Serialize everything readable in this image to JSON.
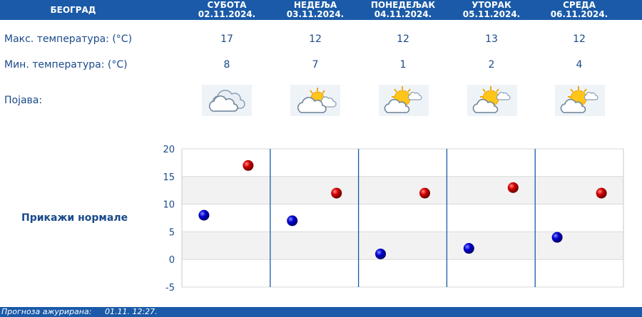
{
  "header": {
    "city": "БЕОГРАД",
    "days": [
      {
        "name": "СУБОТА",
        "date": "02.11.2024."
      },
      {
        "name": "НЕДЕЉА",
        "date": "03.11.2024."
      },
      {
        "name": "ПОНЕДЕЉАК",
        "date": "04.11.2024."
      },
      {
        "name": "УТОРАК",
        "date": "05.11.2024."
      },
      {
        "name": "СРЕДА",
        "date": "06.11.2024."
      }
    ]
  },
  "rows": {
    "max_label": "Макс. температура: (°C)",
    "min_label": "Мин. температура: (°C)",
    "phenomenon_label": "Појава:",
    "max": [
      "17",
      "12",
      "12",
      "13",
      "12"
    ],
    "min": [
      "8",
      "7",
      "1",
      "2",
      "4"
    ],
    "icons": [
      "partly-cloudy-icon",
      "sun-behind-cloud-icon",
      "sun-with-cloud-icon",
      "sun-with-cloud-icon",
      "sun-with-cloud-icon"
    ]
  },
  "normals_link": "Прикажи нормале",
  "footer": {
    "label": "Прогноза ажурирана:",
    "value": "01.11. 12:27."
  },
  "colors": {
    "brand_blue": "#1a5aa8",
    "text_blue": "#1a4a8a",
    "max_marker": "#cc0000",
    "min_marker": "#0000cc"
  },
  "chart_data": {
    "type": "scatter",
    "categories": [
      "02.11.2024.",
      "03.11.2024.",
      "04.11.2024.",
      "05.11.2024.",
      "06.11.2024."
    ],
    "series": [
      {
        "values": [
          17,
          12,
          12,
          13,
          12
        ],
        "color": "#cc0000"
      },
      {
        "values": [
          8,
          7,
          1,
          2,
          4
        ],
        "color": "#0000cc"
      }
    ],
    "ylim": [
      -5,
      20
    ],
    "yticks": [
      "20",
      "15",
      "10",
      "5",
      "0",
      "-5"
    ],
    "grid": true
  }
}
